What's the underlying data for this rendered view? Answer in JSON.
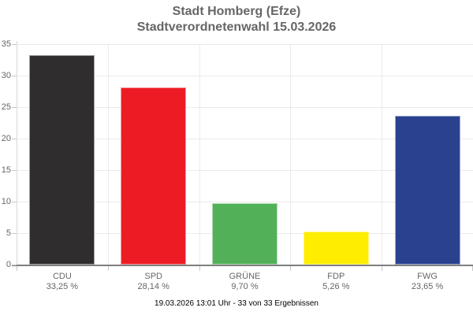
{
  "title": {
    "line1": "Stadt Homberg (Efze)",
    "line2": "Stadtverordnetenwahl 15.03.2026"
  },
  "footer": {
    "text": "19.03.2026 13:01 Uhr - 33 von 33 Ergebnissen"
  },
  "chart_data": {
    "type": "bar",
    "title": "Stadt Homberg (Efze) Stadtverordnetenwahl 15.03.2026",
    "categories": [
      "CDU",
      "SPD",
      "GRÜNE",
      "FDP",
      "FWG"
    ],
    "values": [
      33.25,
      28.14,
      9.7,
      5.26,
      23.65
    ],
    "value_labels": [
      "33,25 %",
      "28,14 %",
      "9,70 %",
      "5,26 %",
      "23,65 %"
    ],
    "bar_colors": [
      "#2f2d2e",
      "#ed1c24",
      "#52b158",
      "#ffed00",
      "#2a418f"
    ],
    "xlabel": "",
    "ylabel": "",
    "ylim": [
      0,
      35
    ],
    "yticks": [
      0,
      5,
      10,
      15,
      20,
      25,
      30,
      35
    ],
    "grid": true,
    "legend": false
  },
  "style": {
    "background": "#ffffff",
    "title_color": "#666666",
    "label_color": "#666666",
    "footer_color": "#000000",
    "grid_color": "#ebebeb",
    "axis_line_color": "#7f7f7f",
    "tick_color": "#c6c6c6"
  }
}
